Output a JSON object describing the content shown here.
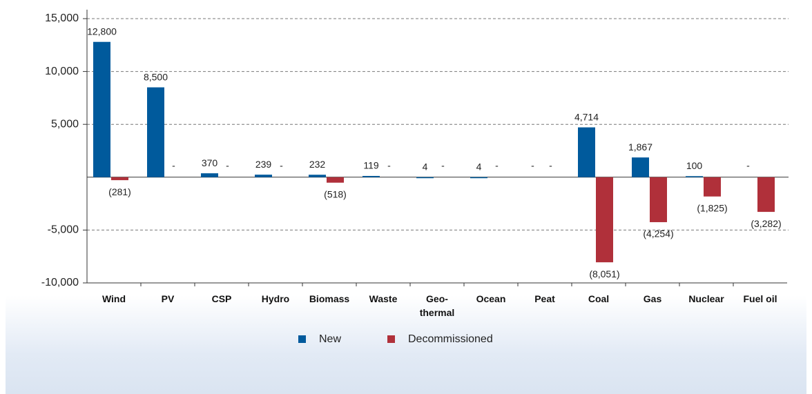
{
  "chart_data": {
    "type": "bar",
    "categories": [
      "Wind",
      "PV",
      "CSP",
      "Hydro",
      "Biomass",
      "Waste",
      "Geo- thermal",
      "Ocean",
      "Peat",
      "Coal",
      "Gas",
      "Nuclear",
      "Fuel oil"
    ],
    "series": [
      {
        "name": "New",
        "color": "#005a9c",
        "values": [
          12800,
          8500,
          370,
          239,
          232,
          119,
          4,
          4,
          null,
          4714,
          1867,
          100,
          null
        ],
        "value_labels": [
          "12,800",
          "8,500",
          "370",
          "239",
          "232",
          "119",
          "4",
          "4",
          "-",
          "4,714",
          "1,867",
          "100",
          "-"
        ]
      },
      {
        "name": "Decommissioned",
        "color": "#b0303a",
        "values": [
          -281,
          null,
          null,
          null,
          -518,
          null,
          null,
          null,
          null,
          -8051,
          -4254,
          -1825,
          -3282
        ],
        "value_labels": [
          "(281)",
          "-",
          "-",
          "-",
          "(518)",
          "-",
          "-",
          "-",
          "-",
          "(8,051)",
          "(4,254)",
          "(1,825)",
          "(3,282)"
        ]
      }
    ],
    "ylim": [
      -10000,
      15000
    ],
    "yticks": [
      {
        "value": 15000,
        "label": "15,000"
      },
      {
        "value": 10000,
        "label": "10,000"
      },
      {
        "value": 5000,
        "label": "5,000"
      },
      {
        "value": -5000,
        "label": "-5,000"
      },
      {
        "value": -10000,
        "label": "-10,000"
      }
    ],
    "grid": true
  }
}
